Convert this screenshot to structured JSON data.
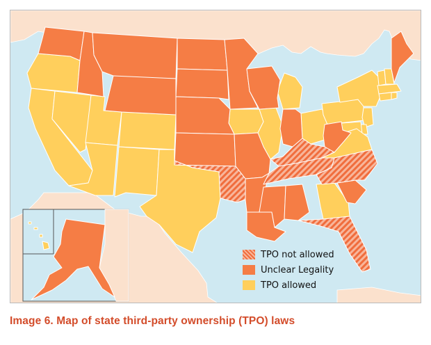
{
  "colors": {
    "ocean": "#cfe9f2",
    "foreign_land": "#fbe1cd",
    "tpo_allowed": "#ffcf5c",
    "unclear_legality": "#f57d45",
    "tpo_not_allowed_base": "#f8b69b",
    "tpo_not_allowed_hatch": "#f06d3d",
    "state_border": "#ffffff",
    "caption": "#d34c2a"
  },
  "legend": {
    "items": [
      {
        "key": "not_allowed",
        "label": "TPO not allowed"
      },
      {
        "key": "unclear",
        "label": "Unclear Legality"
      },
      {
        "key": "allowed",
        "label": "TPO allowed"
      }
    ]
  },
  "regions": {
    "tpo_allowed": [
      "Oregon",
      "California",
      "Nevada",
      "Utah",
      "Arizona",
      "Colorado",
      "New Mexico",
      "Texas",
      "Iowa",
      "Illinois",
      "Michigan",
      "Ohio",
      "Pennsylvania",
      "New York",
      "Vermont",
      "New Hampshire",
      "Massachusetts",
      "Connecticut",
      "Rhode Island",
      "New Jersey",
      "Delaware",
      "Maryland",
      "Virginia",
      "Georgia",
      "Hawaii"
    ],
    "unclear_legality": [
      "Washington",
      "Idaho",
      "Montana",
      "Wyoming",
      "North Dakota",
      "South Dakota",
      "Nebraska",
      "Kansas",
      "Minnesota",
      "Wisconsin",
      "Missouri",
      "Arkansas",
      "Louisiana",
      "Mississippi",
      "Alabama",
      "Indiana",
      "West Virginia",
      "South Carolina",
      "Maine",
      "Alaska"
    ],
    "tpo_not_allowed": [
      "Oklahoma",
      "Kentucky",
      "Tennessee",
      "North Carolina",
      "Florida"
    ]
  },
  "caption": "Image 6. Map of state third-party ownership (TPO) laws"
}
